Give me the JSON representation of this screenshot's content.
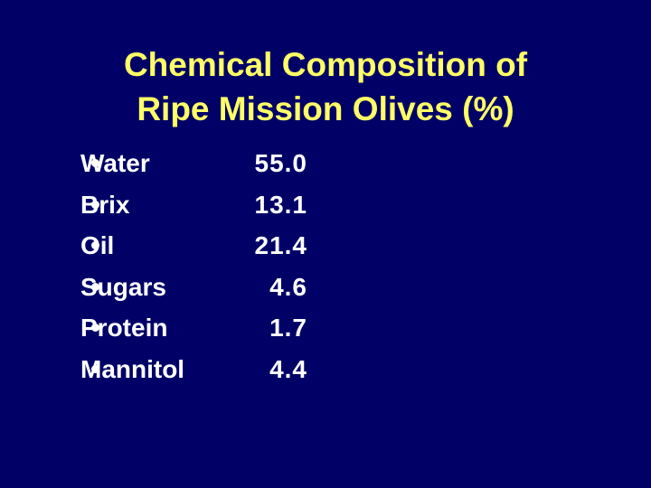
{
  "slide": {
    "title_lines": [
      "Chemical Composition of",
      "Ripe Mission Olives (%)"
    ],
    "items": [
      {
        "label": "Water",
        "value": "55.0"
      },
      {
        "label": "Brix",
        "value": "13.1"
      },
      {
        "label": "Oil",
        "value": "21.4"
      },
      {
        "label": "Sugars",
        "value": "4.6"
      },
      {
        "label": "Protein",
        "value": "1.7"
      },
      {
        "label": "Mannitol",
        "value": "4.4"
      }
    ]
  }
}
